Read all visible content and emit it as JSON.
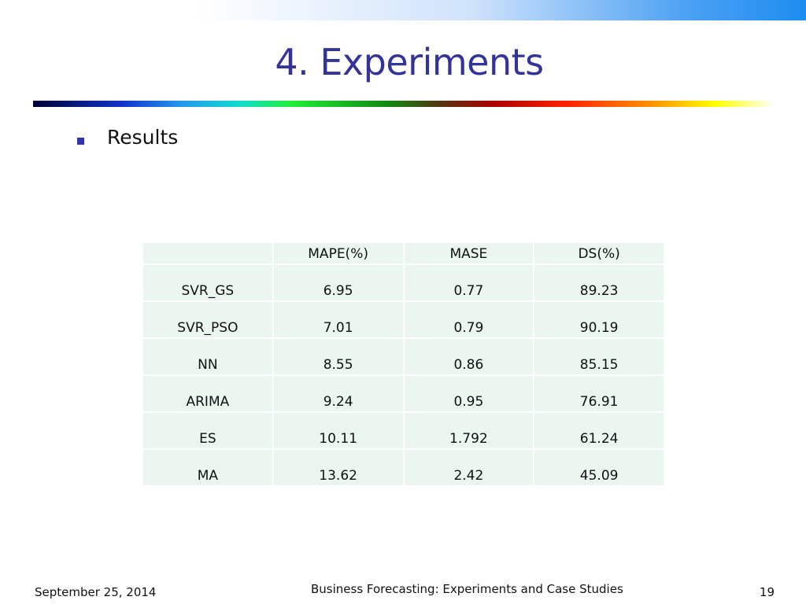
{
  "slide": {
    "title": "4. Experiments",
    "bullet": "Results"
  },
  "table": {
    "headers": [
      "",
      "MAPE(%)",
      "MASE",
      "DS(%)"
    ],
    "rows": [
      [
        "SVR_GS",
        "6.95",
        "0.77",
        "89.23"
      ],
      [
        "SVR_PSO",
        "7.01",
        "0.79",
        "90.19"
      ],
      [
        "NN",
        "8.55",
        "0.86",
        "85.15"
      ],
      [
        "ARIMA",
        "9.24",
        "0.95",
        "76.91"
      ],
      [
        "ES",
        "10.11",
        "1.792",
        "61.24"
      ],
      [
        "MA",
        "13.62",
        "2.42",
        "45.09"
      ]
    ]
  },
  "footer": {
    "date": "September 25, 2014",
    "title": "Business Forecasting: Experiments and Case Studies",
    "page": "19"
  },
  "colors": {
    "title": "#333399",
    "table_cell": "#eaf6ef",
    "bullet": "#3333aa"
  }
}
